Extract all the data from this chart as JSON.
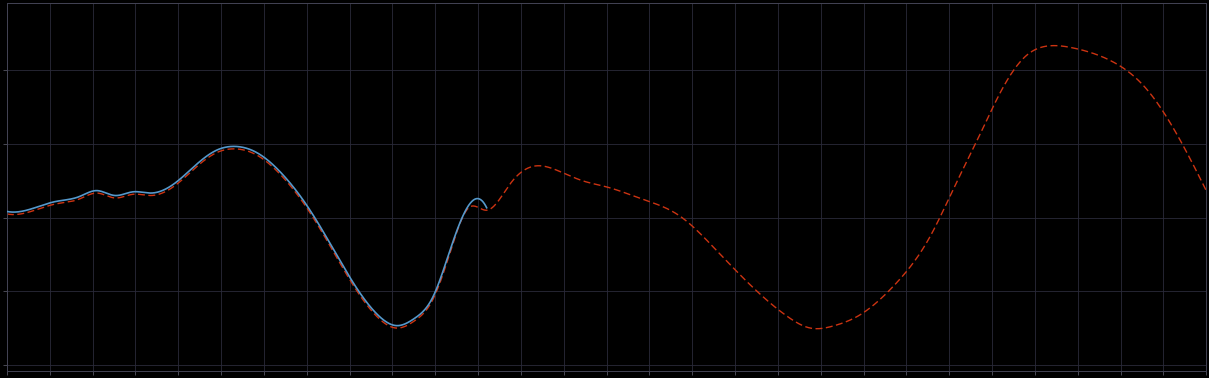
{
  "background_color": "#000000",
  "grid_color": "#2a2a3a",
  "axes_facecolor": "#000000",
  "figure_facecolor": "#000000",
  "blue_line_color": "#5599cc",
  "red_line_color": "#cc3311",
  "blue_linewidth": 1.2,
  "red_linewidth": 1.0,
  "xlim": [
    0,
    100
  ],
  "ylim": [
    -1.25,
    1.75
  ],
  "n_xtick_divs": 28,
  "n_ytick_divs": 5,
  "blue_x": [
    0,
    2,
    4,
    6,
    7.5,
    9,
    10.5,
    12,
    14,
    16,
    17.5,
    19,
    21,
    23,
    25,
    27,
    29,
    31,
    32.5,
    34,
    35.5,
    37,
    38.5,
    40
  ],
  "blue_y": [
    0.05,
    0.07,
    0.13,
    0.17,
    0.22,
    0.18,
    0.21,
    0.2,
    0.28,
    0.45,
    0.55,
    0.58,
    0.52,
    0.35,
    0.1,
    -0.22,
    -0.55,
    -0.8,
    -0.88,
    -0.82,
    -0.65,
    -0.25,
    0.1,
    0.08
  ],
  "red_x": [
    0,
    2,
    4,
    6,
    7.5,
    9,
    10.5,
    12,
    14,
    16,
    17.5,
    19,
    21,
    23,
    25,
    27,
    29,
    31,
    32.5,
    34,
    35.5,
    37,
    38.5,
    40,
    42,
    44,
    46,
    48,
    50,
    53,
    56,
    59,
    62,
    65,
    67,
    69,
    71,
    74,
    77,
    79,
    81,
    83,
    85,
    87,
    89,
    92,
    95,
    98,
    100
  ],
  "red_y": [
    0.03,
    0.05,
    0.11,
    0.15,
    0.2,
    0.16,
    0.19,
    0.18,
    0.26,
    0.43,
    0.53,
    0.56,
    0.5,
    0.33,
    0.08,
    -0.24,
    -0.57,
    -0.82,
    -0.9,
    -0.84,
    -0.67,
    -0.27,
    0.08,
    0.06,
    0.28,
    0.42,
    0.38,
    0.3,
    0.25,
    0.15,
    0.02,
    -0.25,
    -0.55,
    -0.8,
    -0.9,
    -0.88,
    -0.8,
    -0.55,
    -0.15,
    0.25,
    0.65,
    1.05,
    1.32,
    1.4,
    1.38,
    1.28,
    1.05,
    0.6,
    0.22
  ]
}
